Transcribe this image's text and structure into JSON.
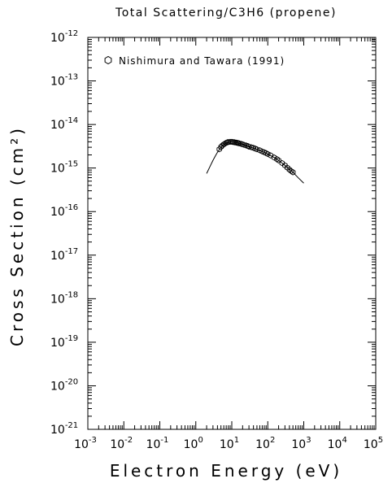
{
  "chart_data": {
    "type": "scatter",
    "title": "Total Scattering/C3H6 (propene)",
    "xlabel": "Electron Energy (eV)",
    "ylabel": "Cross Section (cm²)",
    "x_scale": "log",
    "y_scale": "log",
    "xlim": [
      0.001,
      100000
    ],
    "ylim": [
      1e-21,
      1e-12
    ],
    "x_ticks": [
      {
        "base": "10",
        "exp": "-3"
      },
      {
        "base": "10",
        "exp": "-2"
      },
      {
        "base": "10",
        "exp": "-1"
      },
      {
        "base": "10",
        "exp": "0"
      },
      {
        "base": "10",
        "exp": "1"
      },
      {
        "base": "10",
        "exp": "2"
      },
      {
        "base": "10",
        "exp": "3"
      },
      {
        "base": "10",
        "exp": "4"
      },
      {
        "base": "10",
        "exp": "5"
      }
    ],
    "y_ticks": [
      {
        "base": "10",
        "exp": "-21"
      },
      {
        "base": "10",
        "exp": "-20"
      },
      {
        "base": "10",
        "exp": "-19"
      },
      {
        "base": "10",
        "exp": "-18"
      },
      {
        "base": "10",
        "exp": "-17"
      },
      {
        "base": "10",
        "exp": "-16"
      },
      {
        "base": "10",
        "exp": "-15"
      },
      {
        "base": "10",
        "exp": "-14"
      },
      {
        "base": "10",
        "exp": "-13"
      },
      {
        "base": "10",
        "exp": "-12"
      }
    ],
    "legend": {
      "placement": "top-left",
      "entries": [
        "Nishimura and Tawara (1991)"
      ]
    },
    "grid": false,
    "series": [
      {
        "name": "Nishimura and Tawara (1991)",
        "marker": "hexagon-open",
        "x": [
          4.5,
          5.0,
          5.5,
          6.0,
          6.5,
          7.0,
          7.5,
          8.0,
          9.0,
          10,
          11,
          12,
          13,
          14,
          15,
          16,
          18,
          20,
          22,
          25,
          28,
          30,
          35,
          40,
          45,
          50,
          60,
          70,
          80,
          90,
          100,
          120,
          150,
          180,
          200,
          250,
          300,
          350,
          400,
          450,
          500
        ],
        "y": [
          2.7e-15,
          3.05e-15,
          3.3e-15,
          3.5e-15,
          3.65e-15,
          3.8e-15,
          3.9e-15,
          3.95e-15,
          4e-15,
          4e-15,
          3.95e-15,
          3.9e-15,
          3.85e-15,
          3.8e-15,
          3.75e-15,
          3.7e-15,
          3.6e-15,
          3.5e-15,
          3.4e-15,
          3.3e-15,
          3.2e-15,
          3.1e-15,
          3e-15,
          2.9e-15,
          2.8e-15,
          2.7e-15,
          2.55e-15,
          2.4e-15,
          2.3e-15,
          2.2e-15,
          2.1e-15,
          1.95e-15,
          1.75e-15,
          1.6e-15,
          1.5e-15,
          1.3e-15,
          1.15e-15,
          1.02e-15,
          9.2e-16,
          8.5e-16,
          8e-16
        ]
      },
      {
        "name": "",
        "marker": "line",
        "x": [
          2.0,
          2.5,
          3.0,
          3.5,
          4.0,
          5.0,
          6.0,
          7.0,
          8.0,
          10,
          12,
          15,
          20,
          30,
          50,
          70,
          100,
          150,
          200,
          300,
          500,
          700,
          1000
        ],
        "y": [
          7.5e-16,
          1.1e-15,
          1.5e-15,
          1.9e-15,
          2.3e-15,
          3e-15,
          3.45e-15,
          3.75e-15,
          3.9e-15,
          4e-15,
          3.9e-15,
          3.75e-15,
          3.5e-15,
          3.1e-15,
          2.7e-15,
          2.4e-15,
          2.1e-15,
          1.75e-15,
          1.5e-15,
          1.15e-15,
          8e-16,
          6e-16,
          4.5e-16
        ]
      }
    ]
  }
}
